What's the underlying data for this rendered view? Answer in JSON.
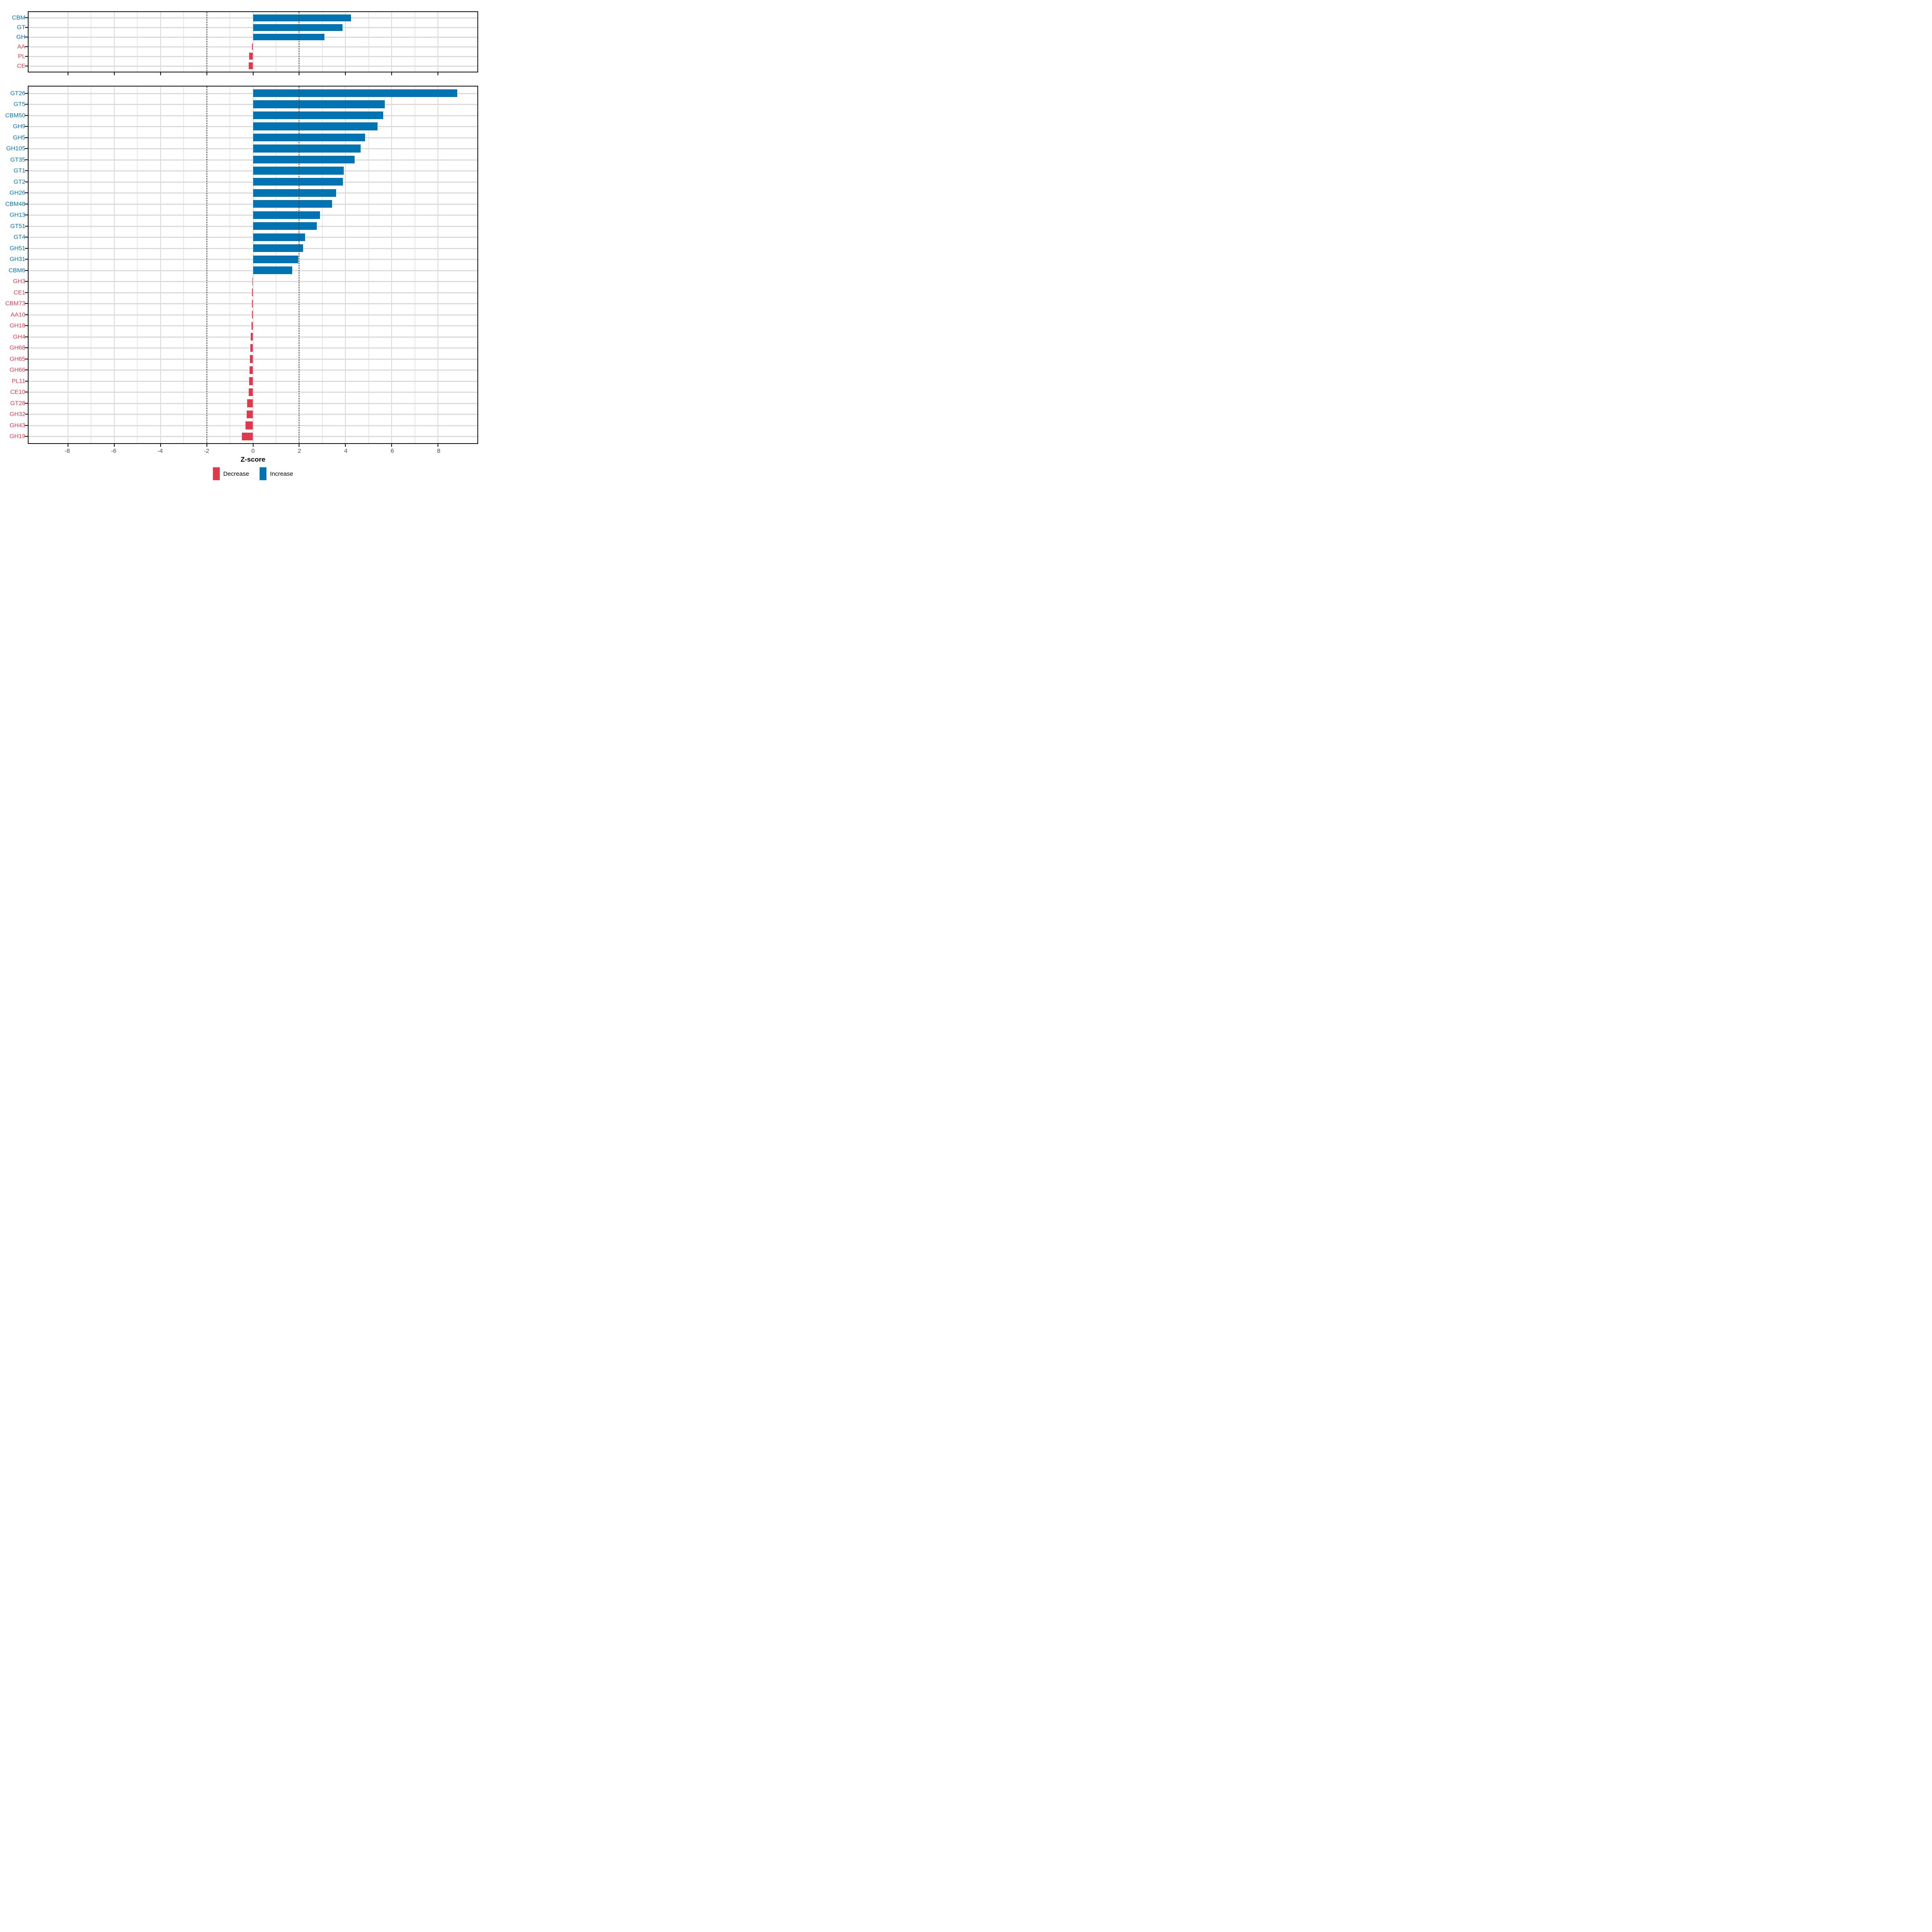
{
  "figure": {
    "background": "#ffffff"
  },
  "axis": {
    "title": "Z-score",
    "min": -9.7,
    "max": 9.7,
    "major_breaks": [
      -8,
      -6,
      -4,
      -2,
      0,
      2,
      4,
      6,
      8
    ],
    "minor_breaks": [
      -7,
      -5,
      -3,
      -1,
      1,
      3,
      5,
      7
    ],
    "reference_lines": [
      -2,
      2
    ],
    "tick_labels": [
      "-8",
      "-6",
      "-4",
      "-2",
      "0",
      "2",
      "4",
      "6",
      "8"
    ]
  },
  "colors": {
    "increase": "#0073B2",
    "decrease": "#E0394B",
    "grid_major": "#D9D9D9",
    "grid_minor": "#E7E7E7",
    "reference_line": "#454545",
    "tick_text": "#4D4D4D",
    "panel_border": "#111111"
  },
  "legend": {
    "items": [
      {
        "label": "Decrease",
        "color": "#E0394B"
      },
      {
        "label": "Increase",
        "color": "#0073B2"
      }
    ]
  },
  "chart_data": [
    {
      "panel": "cazyme-classes",
      "type": "bar",
      "orientation": "horizontal",
      "title": "",
      "xlabel": "Z-score",
      "ylabel": "",
      "xlim": [
        -9.7,
        9.7
      ],
      "grid": true,
      "categories": [
        "CBM",
        "GT",
        "GH",
        "AA",
        "PL",
        "CE"
      ],
      "values": [
        4.23,
        3.87,
        3.09,
        -0.04,
        -0.16,
        -0.19
      ],
      "directions": [
        "Increase",
        "Increase",
        "Increase",
        "Decrease",
        "Decrease",
        "Decrease"
      ]
    },
    {
      "panel": "cazyme-families",
      "type": "bar",
      "orientation": "horizontal",
      "title": "",
      "xlabel": "Z-score",
      "ylabel": "",
      "xlim": [
        -9.7,
        9.7
      ],
      "grid": true,
      "categories": [
        "GT26",
        "GT5",
        "CBM50",
        "GH9",
        "GH5",
        "GH105",
        "GT35",
        "GT1",
        "GT2",
        "GH26",
        "CBM48",
        "GH13",
        "GT51",
        "GT4",
        "GH51",
        "GH31",
        "CBM6",
        "GH3",
        "CE1",
        "CBM73",
        "AA10",
        "GH18",
        "GH4",
        "GH68",
        "GH65",
        "GH66",
        "PL11",
        "CE10",
        "GT28",
        "GH32",
        "GH43",
        "GH19"
      ],
      "values": [
        8.83,
        5.69,
        5.62,
        5.39,
        4.85,
        4.65,
        4.39,
        3.93,
        3.89,
        3.59,
        3.42,
        2.89,
        2.76,
        2.26,
        2.16,
        1.96,
        1.69,
        -0.03,
        -0.04,
        -0.04,
        -0.04,
        -0.06,
        -0.1,
        -0.11,
        -0.13,
        -0.15,
        -0.17,
        -0.19,
        -0.25,
        -0.27,
        -0.33,
        -0.48
      ],
      "directions": [
        "Increase",
        "Increase",
        "Increase",
        "Increase",
        "Increase",
        "Increase",
        "Increase",
        "Increase",
        "Increase",
        "Increase",
        "Increase",
        "Increase",
        "Increase",
        "Increase",
        "Increase",
        "Increase",
        "Increase",
        "Decrease",
        "Decrease",
        "Decrease",
        "Decrease",
        "Decrease",
        "Decrease",
        "Decrease",
        "Decrease",
        "Decrease",
        "Decrease",
        "Decrease",
        "Decrease",
        "Decrease",
        "Decrease",
        "Decrease"
      ]
    }
  ]
}
